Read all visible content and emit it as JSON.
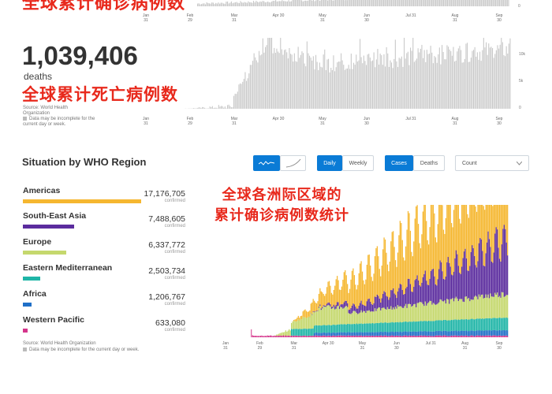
{
  "top": {
    "red_title": "全球累计确诊病例数",
    "axis_labels": [
      [
        "Jan",
        "31"
      ],
      [
        "Feb",
        "29"
      ],
      [
        "Mar",
        "31"
      ],
      [
        "Apr 30",
        ""
      ],
      [
        "May",
        "31"
      ],
      [
        "Jun",
        "30"
      ],
      [
        "Jul 31",
        ""
      ],
      [
        "Aug",
        "31"
      ],
      [
        "Sep",
        "30"
      ]
    ]
  },
  "deaths": {
    "number": "1,039,406",
    "label": "deaths",
    "red_title": "全球累计死亡病例数",
    "source": "Source: World Health Organization",
    "note": "Data may be incomplete for the current day or week.",
    "axis_right": [
      "10k",
      "5k",
      "0"
    ]
  },
  "regions": {
    "title": "Situation by WHO Region",
    "controls": {
      "daily": "Daily",
      "weekly": "Weekly",
      "cases": "Cases",
      "deaths": "Deaths",
      "count": "Count"
    },
    "items": [
      {
        "name": "Americas",
        "value": "17,176,705",
        "sub": "confirmed",
        "color": "#f5b730",
        "fraction": 1.0
      },
      {
        "name": "South-East Asia",
        "value": "7,488,605",
        "sub": "confirmed",
        "color": "#5b2c9e",
        "fraction": 0.436
      },
      {
        "name": "Europe",
        "value": "6,337,772",
        "sub": "confirmed",
        "color": "#c5d86d",
        "fraction": 0.369
      },
      {
        "name": "Eastern Mediterranean",
        "value": "2,503,734",
        "sub": "confirmed",
        "color": "#1fb5a7",
        "fraction": 0.146
      },
      {
        "name": "Africa",
        "value": "1,206,767",
        "sub": "confirmed",
        "color": "#1f6fc7",
        "fraction": 0.07
      },
      {
        "name": "Western Pacific",
        "value": "633,080",
        "sub": "confirmed",
        "color": "#d4348b",
        "fraction": 0.037
      }
    ],
    "source": "Source: World Health Organization",
    "note": "Data may be incomplete for the current day or week.",
    "annotation_line1": "全球各洲际区域的",
    "annotation_line2": "累计确诊病例数统计",
    "axis_labels": [
      [
        "Jan",
        "31"
      ],
      [
        "Feb",
        "29"
      ],
      [
        "Mar",
        "31"
      ],
      [
        "Apr 30",
        ""
      ],
      [
        "May",
        "31"
      ],
      [
        "Jun",
        "30"
      ],
      [
        "Jul 31",
        ""
      ],
      [
        "Aug",
        "31"
      ],
      [
        "Sep",
        "30"
      ]
    ]
  },
  "colors": {
    "accent": "#0a7bd6",
    "red": "#e8291c",
    "bar_gray": "#c9c9c9"
  }
}
